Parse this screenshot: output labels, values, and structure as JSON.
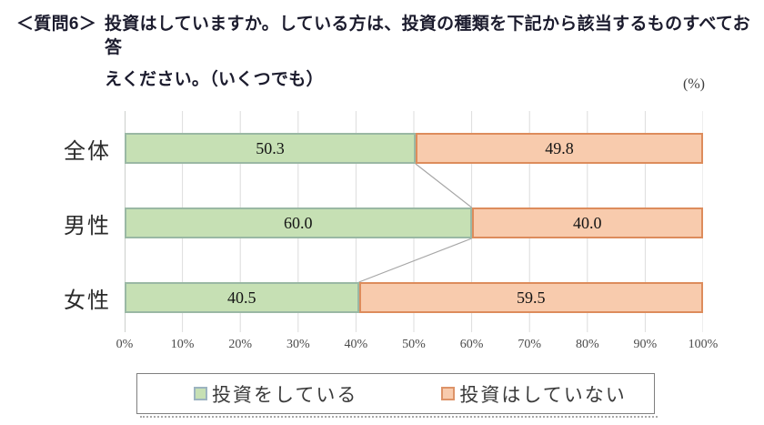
{
  "title": {
    "label": "＜質問6＞",
    "line1": "投資はしていますか。している方は、投資の種類を下記から該当するものすべてお答",
    "line2": "えください。（いくつでも）"
  },
  "unit_label": "(%)",
  "chart_data": {
    "type": "bar",
    "orientation": "horizontal",
    "stacked": true,
    "title": "投資はしていますか",
    "categories": [
      "全体",
      "男性",
      "女性"
    ],
    "series": [
      {
        "name": "投資をしている",
        "values": [
          50.3,
          60.0,
          40.5
        ],
        "labels": [
          "50.3",
          "60.0",
          "40.5"
        ],
        "color": "#c6e0b4",
        "border_color": "#9ab8a4",
        "marker_border": "#9cb3c0"
      },
      {
        "name": "投資はしていない",
        "values": [
          49.8,
          40.0,
          59.5
        ],
        "labels": [
          "49.8",
          "40.0",
          "59.5"
        ],
        "color": "#f8cbad",
        "border_color": "#dd8c5c",
        "marker_border": "#dd9368"
      }
    ],
    "x_ticks": [
      "0%",
      "10%",
      "20%",
      "30%",
      "40%",
      "50%",
      "60%",
      "70%",
      "80%",
      "90%",
      "100%"
    ],
    "xlim": [
      0,
      100
    ],
    "grid": true,
    "gridline_color": "#dcdcdc",
    "axis_line_color": "#bcbfbc",
    "connector_line_color": "#a6a6a6",
    "legend_position": "bottom"
  }
}
